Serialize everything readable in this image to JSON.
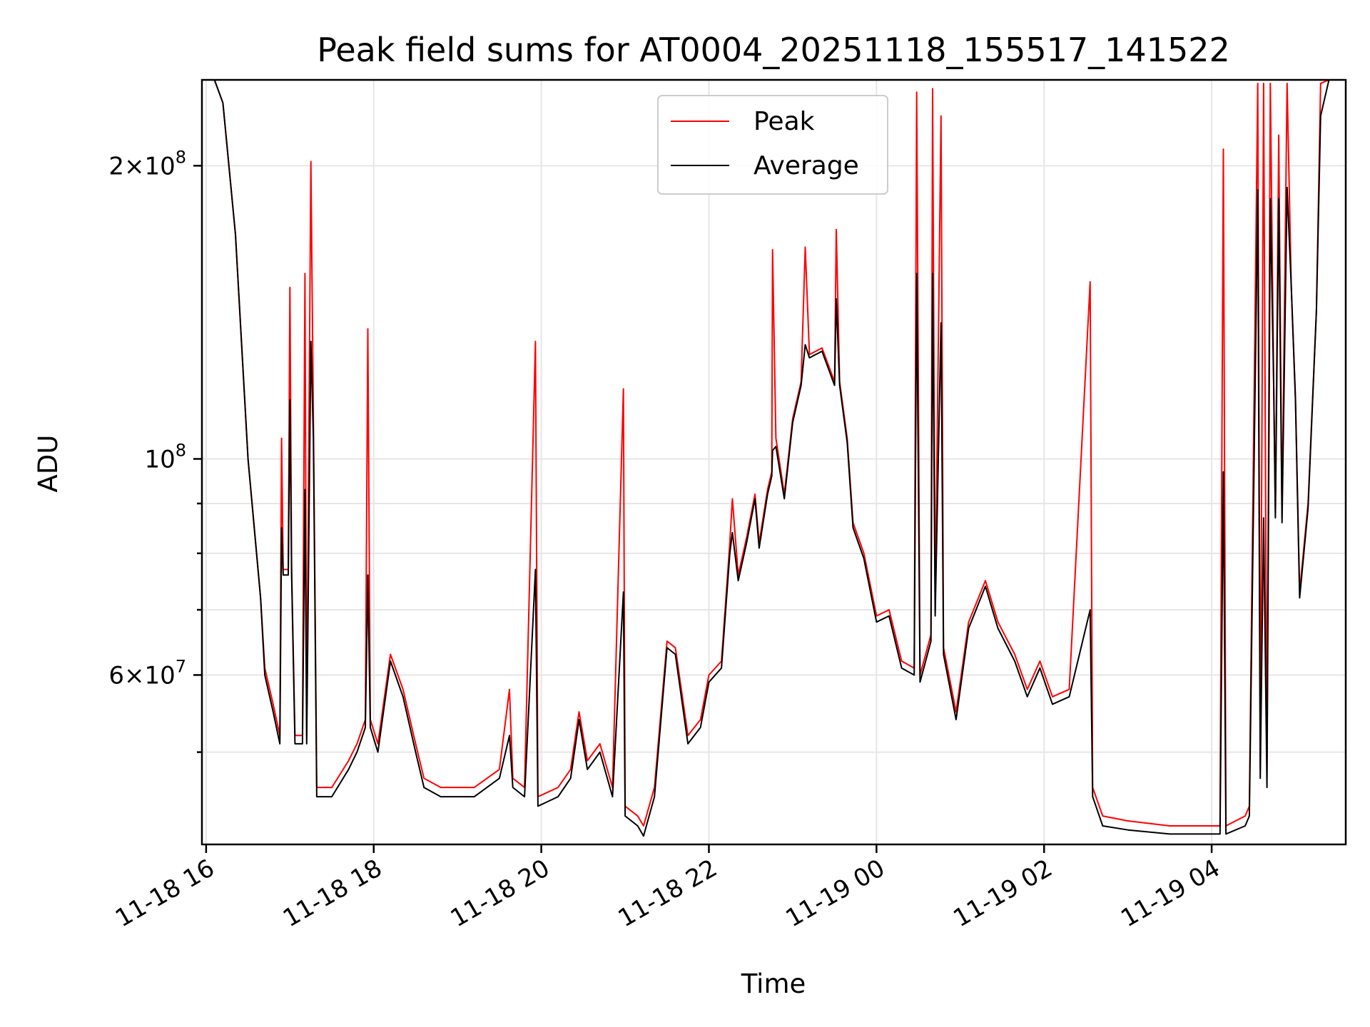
{
  "chart_data": {
    "type": "line",
    "title": "Peak field sums for AT0004_20251118_155517_141522",
    "xlabel": "Time",
    "ylabel": "ADU",
    "yscale": "log",
    "ylim": [
      40200000,
      245000000
    ],
    "x_unit": "hours since 11-18 00:00",
    "xlim": [
      15.95,
      29.6
    ],
    "x_ticks": [
      {
        "value": 16,
        "label": "11-18 16"
      },
      {
        "value": 18,
        "label": "11-18 18"
      },
      {
        "value": 20,
        "label": "11-18 20"
      },
      {
        "value": 22,
        "label": "11-18 22"
      },
      {
        "value": 24,
        "label": "11-19 00"
      },
      {
        "value": 26,
        "label": "11-19 02"
      },
      {
        "value": 28,
        "label": "11-19 04"
      }
    ],
    "y_major_ticks": [
      {
        "value": 60000000,
        "mantissa": "6",
        "exponent": "7"
      },
      {
        "value": 100000000,
        "mantissa": "",
        "exponent": "8"
      },
      {
        "value": 200000000,
        "mantissa": "2",
        "exponent": "8"
      }
    ],
    "y_minor_ticks": [
      50000000,
      70000000,
      80000000,
      90000000
    ],
    "grid": true,
    "legend_position": "upper-center",
    "series": [
      {
        "name": "Peak",
        "color": "#ff0000",
        "points": [
          [
            15.95,
            245000000
          ],
          [
            16.1,
            245000000
          ],
          [
            16.2,
            232000000
          ],
          [
            16.35,
            170000000
          ],
          [
            16.5,
            100000000
          ],
          [
            16.65,
            72000000
          ],
          [
            16.7,
            61000000
          ],
          [
            16.8,
            56000000
          ],
          [
            16.88,
            52000000
          ],
          [
            16.9,
            105000000
          ],
          [
            16.92,
            77000000
          ],
          [
            16.98,
            77000000
          ],
          [
            17.0,
            150000000
          ],
          [
            17.02,
            77000000
          ],
          [
            17.06,
            52000000
          ],
          [
            17.15,
            52000000
          ],
          [
            17.18,
            155000000
          ],
          [
            17.2,
            52000000
          ],
          [
            17.25,
            202000000
          ],
          [
            17.28,
            110000000
          ],
          [
            17.32,
            46000000
          ],
          [
            17.5,
            46000000
          ],
          [
            17.7,
            49000000
          ],
          [
            17.8,
            51000000
          ],
          [
            17.9,
            54000000
          ],
          [
            17.93,
            136000000
          ],
          [
            17.96,
            54000000
          ],
          [
            18.05,
            51000000
          ],
          [
            18.2,
            63000000
          ],
          [
            18.35,
            58000000
          ],
          [
            18.5,
            51000000
          ],
          [
            18.6,
            47000000
          ],
          [
            18.8,
            46000000
          ],
          [
            19.2,
            46000000
          ],
          [
            19.5,
            48000000
          ],
          [
            19.62,
            58000000
          ],
          [
            19.66,
            47000000
          ],
          [
            19.8,
            46000000
          ],
          [
            19.93,
            132000000
          ],
          [
            19.96,
            45000000
          ],
          [
            20.2,
            46000000
          ],
          [
            20.35,
            48000000
          ],
          [
            20.45,
            55000000
          ],
          [
            20.55,
            49000000
          ],
          [
            20.7,
            51000000
          ],
          [
            20.85,
            46000000
          ],
          [
            20.98,
            118000000
          ],
          [
            21.0,
            44000000
          ],
          [
            21.15,
            43000000
          ],
          [
            21.22,
            42000000
          ],
          [
            21.35,
            46000000
          ],
          [
            21.5,
            65000000
          ],
          [
            21.6,
            64000000
          ],
          [
            21.75,
            52000000
          ],
          [
            21.9,
            54000000
          ],
          [
            22.0,
            60000000
          ],
          [
            22.15,
            62000000
          ],
          [
            22.25,
            82000000
          ],
          [
            22.28,
            91000000
          ],
          [
            22.35,
            76000000
          ],
          [
            22.45,
            83000000
          ],
          [
            22.55,
            92000000
          ],
          [
            22.6,
            82000000
          ],
          [
            22.7,
            93000000
          ],
          [
            22.75,
            97000000
          ],
          [
            22.76,
            164000000
          ],
          [
            22.8,
            105000000
          ],
          [
            22.9,
            92000000
          ],
          [
            23.0,
            110000000
          ],
          [
            23.1,
            120000000
          ],
          [
            23.15,
            165000000
          ],
          [
            23.2,
            128000000
          ],
          [
            23.35,
            130000000
          ],
          [
            23.5,
            120000000
          ],
          [
            23.52,
            172000000
          ],
          [
            23.56,
            120000000
          ],
          [
            23.65,
            105000000
          ],
          [
            23.72,
            86000000
          ],
          [
            23.85,
            80000000
          ],
          [
            24.0,
            69000000
          ],
          [
            24.15,
            70000000
          ],
          [
            24.3,
            62000000
          ],
          [
            24.45,
            61000000
          ],
          [
            24.48,
            238000000
          ],
          [
            24.52,
            60000000
          ],
          [
            24.65,
            66000000
          ],
          [
            24.67,
            240000000
          ],
          [
            24.7,
            70000000
          ],
          [
            24.77,
            225000000
          ],
          [
            24.8,
            64000000
          ],
          [
            24.95,
            55000000
          ],
          [
            25.1,
            68000000
          ],
          [
            25.3,
            75000000
          ],
          [
            25.45,
            68000000
          ],
          [
            25.65,
            63000000
          ],
          [
            25.8,
            58000000
          ],
          [
            25.95,
            62000000
          ],
          [
            26.1,
            57000000
          ],
          [
            26.3,
            58000000
          ],
          [
            26.55,
            152000000
          ],
          [
            26.58,
            46000000
          ],
          [
            26.7,
            43000000
          ],
          [
            27.0,
            42500000
          ],
          [
            27.5,
            42000000
          ],
          [
            28.0,
            42000000
          ],
          [
            28.1,
            42000000
          ],
          [
            28.14,
            208000000
          ],
          [
            28.17,
            42000000
          ],
          [
            28.4,
            43000000
          ],
          [
            28.45,
            44000000
          ],
          [
            28.55,
            243000000
          ],
          [
            28.58,
            48000000
          ],
          [
            28.62,
            243000000
          ],
          [
            28.66,
            47000000
          ],
          [
            28.7,
            243000000
          ],
          [
            28.74,
            120000000
          ],
          [
            28.76,
            88000000
          ],
          [
            28.8,
            215000000
          ],
          [
            28.84,
            87000000
          ],
          [
            28.9,
            243000000
          ],
          [
            28.95,
            150000000
          ],
          [
            29.0,
            116000000
          ],
          [
            29.05,
            73000000
          ],
          [
            29.15,
            90000000
          ],
          [
            29.25,
            142000000
          ],
          [
            29.3,
            243000000
          ],
          [
            29.4,
            245000000
          ],
          [
            29.6,
            245000000
          ]
        ]
      },
      {
        "name": "Average",
        "color": "#000000",
        "points": [
          [
            15.95,
            245000000
          ],
          [
            16.1,
            245000000
          ],
          [
            16.2,
            232000000
          ],
          [
            16.35,
            170000000
          ],
          [
            16.5,
            100000000
          ],
          [
            16.65,
            72000000
          ],
          [
            16.7,
            60000000
          ],
          [
            16.8,
            55000000
          ],
          [
            16.88,
            51000000
          ],
          [
            16.9,
            85000000
          ],
          [
            16.92,
            76000000
          ],
          [
            16.98,
            76000000
          ],
          [
            17.0,
            115000000
          ],
          [
            17.02,
            76000000
          ],
          [
            17.06,
            51000000
          ],
          [
            17.15,
            51000000
          ],
          [
            17.18,
            93000000
          ],
          [
            17.2,
            51000000
          ],
          [
            17.25,
            132000000
          ],
          [
            17.28,
            105000000
          ],
          [
            17.32,
            45000000
          ],
          [
            17.5,
            45000000
          ],
          [
            17.7,
            48000000
          ],
          [
            17.8,
            50000000
          ],
          [
            17.9,
            53000000
          ],
          [
            17.93,
            76000000
          ],
          [
            17.96,
            53000000
          ],
          [
            18.05,
            50000000
          ],
          [
            18.2,
            62000000
          ],
          [
            18.35,
            57000000
          ],
          [
            18.5,
            50000000
          ],
          [
            18.6,
            46000000
          ],
          [
            18.8,
            45000000
          ],
          [
            19.2,
            45000000
          ],
          [
            19.5,
            47000000
          ],
          [
            19.62,
            52000000
          ],
          [
            19.66,
            46000000
          ],
          [
            19.8,
            45000000
          ],
          [
            19.93,
            77000000
          ],
          [
            19.96,
            44000000
          ],
          [
            20.2,
            45000000
          ],
          [
            20.35,
            47000000
          ],
          [
            20.45,
            54000000
          ],
          [
            20.55,
            48000000
          ],
          [
            20.7,
            50000000
          ],
          [
            20.85,
            45000000
          ],
          [
            20.98,
            73000000
          ],
          [
            21.0,
            43000000
          ],
          [
            21.15,
            42000000
          ],
          [
            21.22,
            41000000
          ],
          [
            21.35,
            45000000
          ],
          [
            21.5,
            64000000
          ],
          [
            21.6,
            63000000
          ],
          [
            21.75,
            51000000
          ],
          [
            21.9,
            53000000
          ],
          [
            22.0,
            59000000
          ],
          [
            22.15,
            61000000
          ],
          [
            22.25,
            80000000
          ],
          [
            22.28,
            84000000
          ],
          [
            22.35,
            75000000
          ],
          [
            22.45,
            82000000
          ],
          [
            22.55,
            91000000
          ],
          [
            22.6,
            81000000
          ],
          [
            22.7,
            92000000
          ],
          [
            22.75,
            96000000
          ],
          [
            22.76,
            102000000
          ],
          [
            22.8,
            103000000
          ],
          [
            22.9,
            91000000
          ],
          [
            23.0,
            109000000
          ],
          [
            23.1,
            119000000
          ],
          [
            23.15,
            131000000
          ],
          [
            23.2,
            127000000
          ],
          [
            23.35,
            129000000
          ],
          [
            23.5,
            119000000
          ],
          [
            23.52,
            146000000
          ],
          [
            23.56,
            119000000
          ],
          [
            23.65,
            104000000
          ],
          [
            23.72,
            85000000
          ],
          [
            23.85,
            79000000
          ],
          [
            24.0,
            68000000
          ],
          [
            24.15,
            69000000
          ],
          [
            24.3,
            61000000
          ],
          [
            24.45,
            60000000
          ],
          [
            24.48,
            155000000
          ],
          [
            24.52,
            59000000
          ],
          [
            24.65,
            65000000
          ],
          [
            24.67,
            155000000
          ],
          [
            24.7,
            69000000
          ],
          [
            24.77,
            138000000
          ],
          [
            24.8,
            63000000
          ],
          [
            24.95,
            54000000
          ],
          [
            25.1,
            67000000
          ],
          [
            25.3,
            74000000
          ],
          [
            25.45,
            67000000
          ],
          [
            25.65,
            62000000
          ],
          [
            25.8,
            57000000
          ],
          [
            25.95,
            61000000
          ],
          [
            26.1,
            56000000
          ],
          [
            26.3,
            57000000
          ],
          [
            26.55,
            70000000
          ],
          [
            26.58,
            45000000
          ],
          [
            26.7,
            42000000
          ],
          [
            27.0,
            41600000
          ],
          [
            27.5,
            41200000
          ],
          [
            28.0,
            41200000
          ],
          [
            28.1,
            41200000
          ],
          [
            28.14,
            97000000
          ],
          [
            28.17,
            41200000
          ],
          [
            28.4,
            42000000
          ],
          [
            28.45,
            43000000
          ],
          [
            28.55,
            189000000
          ],
          [
            28.58,
            47000000
          ],
          [
            28.62,
            87000000
          ],
          [
            28.66,
            46000000
          ],
          [
            28.7,
            185000000
          ],
          [
            28.74,
            119000000
          ],
          [
            28.76,
            87000000
          ],
          [
            28.8,
            185000000
          ],
          [
            28.84,
            86000000
          ],
          [
            28.9,
            190000000
          ],
          [
            28.95,
            150000000
          ],
          [
            29.0,
            115000000
          ],
          [
            29.05,
            72000000
          ],
          [
            29.15,
            89000000
          ],
          [
            29.25,
            142000000
          ],
          [
            29.3,
            225000000
          ],
          [
            29.4,
            245000000
          ],
          [
            29.6,
            245000000
          ]
        ]
      }
    ]
  }
}
